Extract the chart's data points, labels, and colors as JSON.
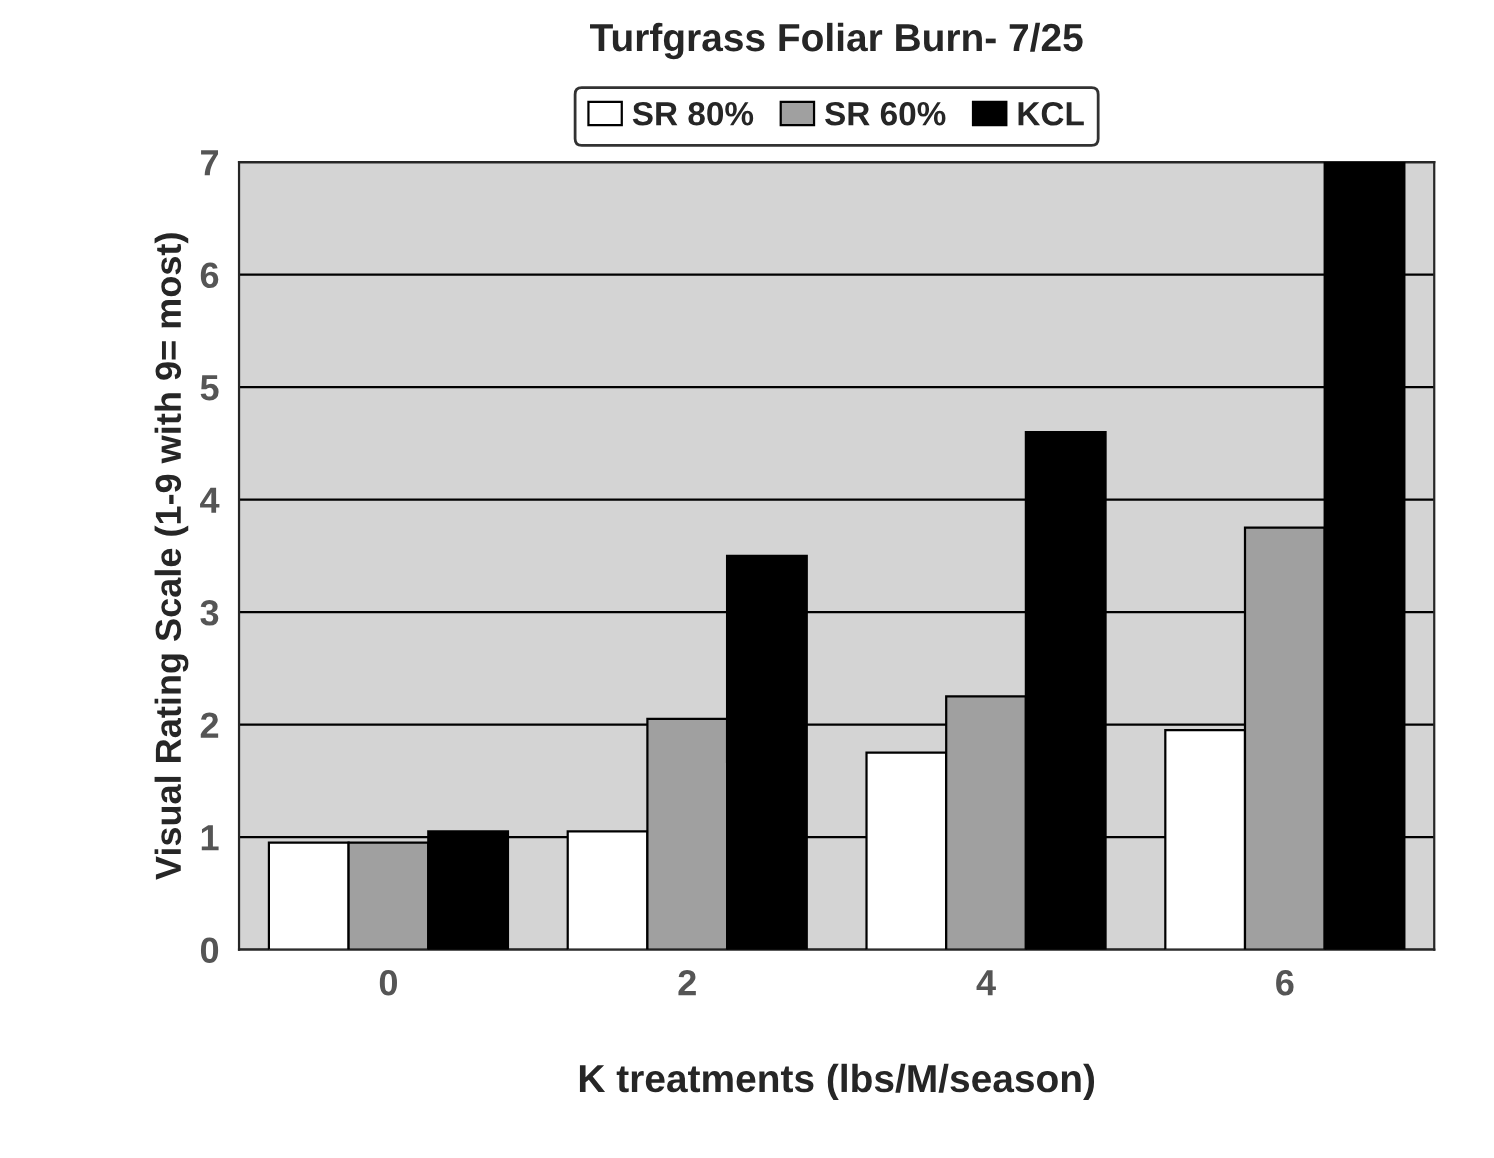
{
  "chart_data": {
    "type": "bar",
    "title": "Turfgrass Foliar Burn- 7/25",
    "xlabel": "K treatments (lbs/M/season)",
    "ylabel": "Visual Rating Scale (1-9 with 9= most)",
    "categories": [
      "0",
      "2",
      "4",
      "6"
    ],
    "series": [
      {
        "name": "SR 80%",
        "color": "#ffffff",
        "values": [
          0.95,
          1.05,
          1.75,
          1.95
        ]
      },
      {
        "name": "SR 60%",
        "color": "#a0a0a0",
        "values": [
          0.95,
          2.05,
          2.25,
          3.75
        ]
      },
      {
        "name": "KCL",
        "color": "#000000",
        "values": [
          1.05,
          3.5,
          4.6,
          7.0
        ]
      }
    ],
    "ylim": [
      0,
      7
    ],
    "yticks": [
      0,
      1,
      2,
      3,
      4,
      5,
      6,
      7
    ],
    "grid": "y",
    "legend": "top"
  }
}
